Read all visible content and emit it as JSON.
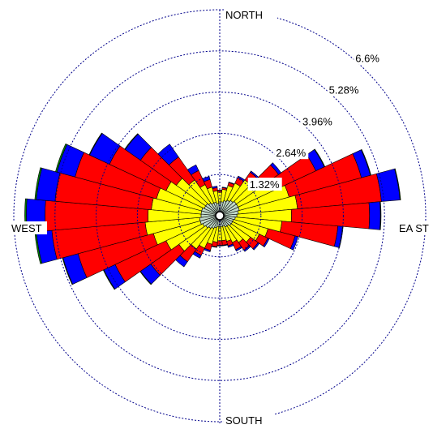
{
  "chart_data": {
    "type": "windrose",
    "directions": {
      "north": "NORTH",
      "south": "SOUTH",
      "east": "EA ST",
      "west": "WEST"
    },
    "ring_labels": [
      "1.32%",
      "2.64%",
      "3.96%",
      "5.28%",
      "6.6%"
    ],
    "ring_values": [
      1.32,
      2.64,
      3.96,
      5.28,
      6.6
    ],
    "rmax": 6.6,
    "sector_count": 36,
    "sector_width_deg": 10,
    "angle_convention": "degrees clockwise from north",
    "colors": [
      "#c0d8c8",
      "#ffff00",
      "#ff0000",
      "#0000ff",
      "#008000"
    ],
    "sectors": [
      {
        "angle": 0,
        "cum": [
          0.4,
          0.75,
          0.8,
          0.82,
          0.82
        ]
      },
      {
        "angle": 10,
        "cum": [
          0.45,
          0.85,
          0.9,
          0.92,
          0.92
        ]
      },
      {
        "angle": 20,
        "cum": [
          0.5,
          1.0,
          1.1,
          1.12,
          1.12
        ]
      },
      {
        "angle": 30,
        "cum": [
          0.55,
          1.15,
          1.35,
          1.4,
          1.4
        ]
      },
      {
        "angle": 40,
        "cum": [
          0.6,
          1.4,
          1.7,
          1.75,
          1.75
        ]
      },
      {
        "angle": 50,
        "cum": [
          0.65,
          1.75,
          2.3,
          2.4,
          2.4
        ]
      },
      {
        "angle": 60,
        "cum": [
          0.65,
          2.0,
          3.4,
          3.7,
          3.72
        ]
      },
      {
        "angle": 70,
        "cum": [
          0.65,
          2.3,
          4.7,
          5.0,
          5.02
        ]
      },
      {
        "angle": 80,
        "cum": [
          0.6,
          2.5,
          5.2,
          5.8,
          5.82
        ]
      },
      {
        "angle": 90,
        "cum": [
          0.55,
          2.3,
          4.8,
          5.15,
          5.17
        ]
      },
      {
        "angle": 100,
        "cum": [
          0.5,
          2.0,
          3.8,
          3.95,
          3.97
        ]
      },
      {
        "angle": 110,
        "cum": [
          0.45,
          1.6,
          2.5,
          2.6,
          2.6
        ]
      },
      {
        "angle": 120,
        "cum": [
          0.45,
          1.4,
          1.7,
          1.75,
          1.75
        ]
      },
      {
        "angle": 130,
        "cum": [
          0.45,
          1.2,
          1.5,
          1.55,
          1.55
        ]
      },
      {
        "angle": 140,
        "cum": [
          0.4,
          1.05,
          1.35,
          1.4,
          1.4
        ]
      },
      {
        "angle": 150,
        "cum": [
          0.4,
          0.95,
          1.2,
          1.25,
          1.25
        ]
      },
      {
        "angle": 160,
        "cum": [
          0.35,
          0.85,
          1.0,
          1.05,
          1.05
        ]
      },
      {
        "angle": 170,
        "cum": [
          0.35,
          0.8,
          0.95,
          0.97,
          0.97
        ]
      },
      {
        "angle": 180,
        "cum": [
          0.35,
          0.8,
          0.95,
          0.97,
          0.97
        ]
      },
      {
        "angle": 190,
        "cum": [
          0.35,
          0.85,
          1.0,
          1.02,
          1.02
        ]
      },
      {
        "angle": 200,
        "cum": [
          0.4,
          0.95,
          1.15,
          1.2,
          1.2
        ]
      },
      {
        "angle": 210,
        "cum": [
          0.45,
          1.15,
          1.4,
          1.5,
          1.5
        ]
      },
      {
        "angle": 220,
        "cum": [
          0.5,
          1.3,
          1.8,
          2.0,
          2.0
        ]
      },
      {
        "angle": 230,
        "cum": [
          0.55,
          1.6,
          2.7,
          3.1,
          3.12
        ]
      },
      {
        "angle": 240,
        "cum": [
          0.6,
          1.9,
          3.7,
          4.1,
          4.12
        ]
      },
      {
        "angle": 250,
        "cum": [
          0.65,
          2.2,
          4.7,
          5.2,
          5.22
        ]
      },
      {
        "angle": 260,
        "cum": [
          0.65,
          2.4,
          5.4,
          5.9,
          5.95
        ]
      },
      {
        "angle": 270,
        "cum": [
          0.6,
          2.3,
          5.6,
          6.2,
          6.25
        ]
      },
      {
        "angle": 280,
        "cum": [
          0.6,
          2.2,
          5.3,
          5.9,
          5.95
        ]
      },
      {
        "angle": 290,
        "cum": [
          0.6,
          2.1,
          4.8,
          5.4,
          5.45
        ]
      },
      {
        "angle": 300,
        "cum": [
          0.55,
          1.9,
          3.9,
          4.6,
          4.62
        ]
      },
      {
        "angle": 310,
        "cum": [
          0.55,
          1.7,
          3.1,
          3.7,
          3.72
        ]
      },
      {
        "angle": 320,
        "cum": [
          0.5,
          1.4,
          2.3,
          2.8,
          2.8
        ]
      },
      {
        "angle": 330,
        "cum": [
          0.45,
          1.1,
          1.6,
          1.8,
          1.8
        ]
      },
      {
        "angle": 340,
        "cum": [
          0.45,
          0.95,
          1.2,
          1.3,
          1.3
        ]
      },
      {
        "angle": 350,
        "cum": [
          0.4,
          0.8,
          0.9,
          0.95,
          0.95
        ]
      }
    ]
  }
}
